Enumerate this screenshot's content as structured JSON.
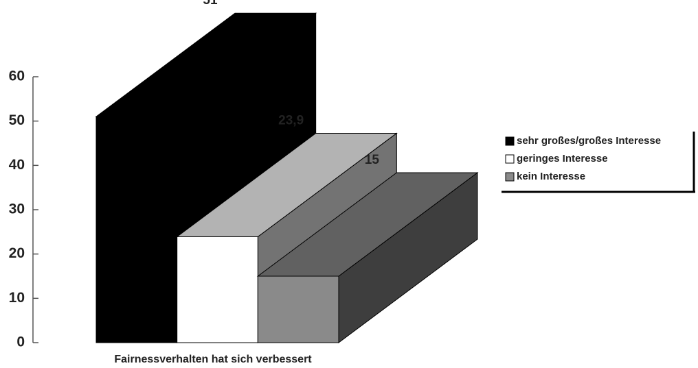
{
  "chart_data": {
    "type": "bar3d",
    "categories": [
      "Fairnessverhalten hat sich verbessert"
    ],
    "series": [
      {
        "name": "sehr großes/großes Interesse",
        "color": "#000000",
        "values": [
          51
        ]
      },
      {
        "name": "geringes Interesse",
        "color": "#ffffff",
        "values": [
          23.9
        ],
        "value_labels": [
          "23,9"
        ]
      },
      {
        "name": "kein Interesse",
        "color": "#8a8a8a",
        "values": [
          15
        ]
      }
    ],
    "ylim": [
      0,
      60
    ],
    "yticks": [
      0,
      10,
      20,
      30,
      40,
      50,
      60
    ],
    "grid": false,
    "legend": "right"
  }
}
